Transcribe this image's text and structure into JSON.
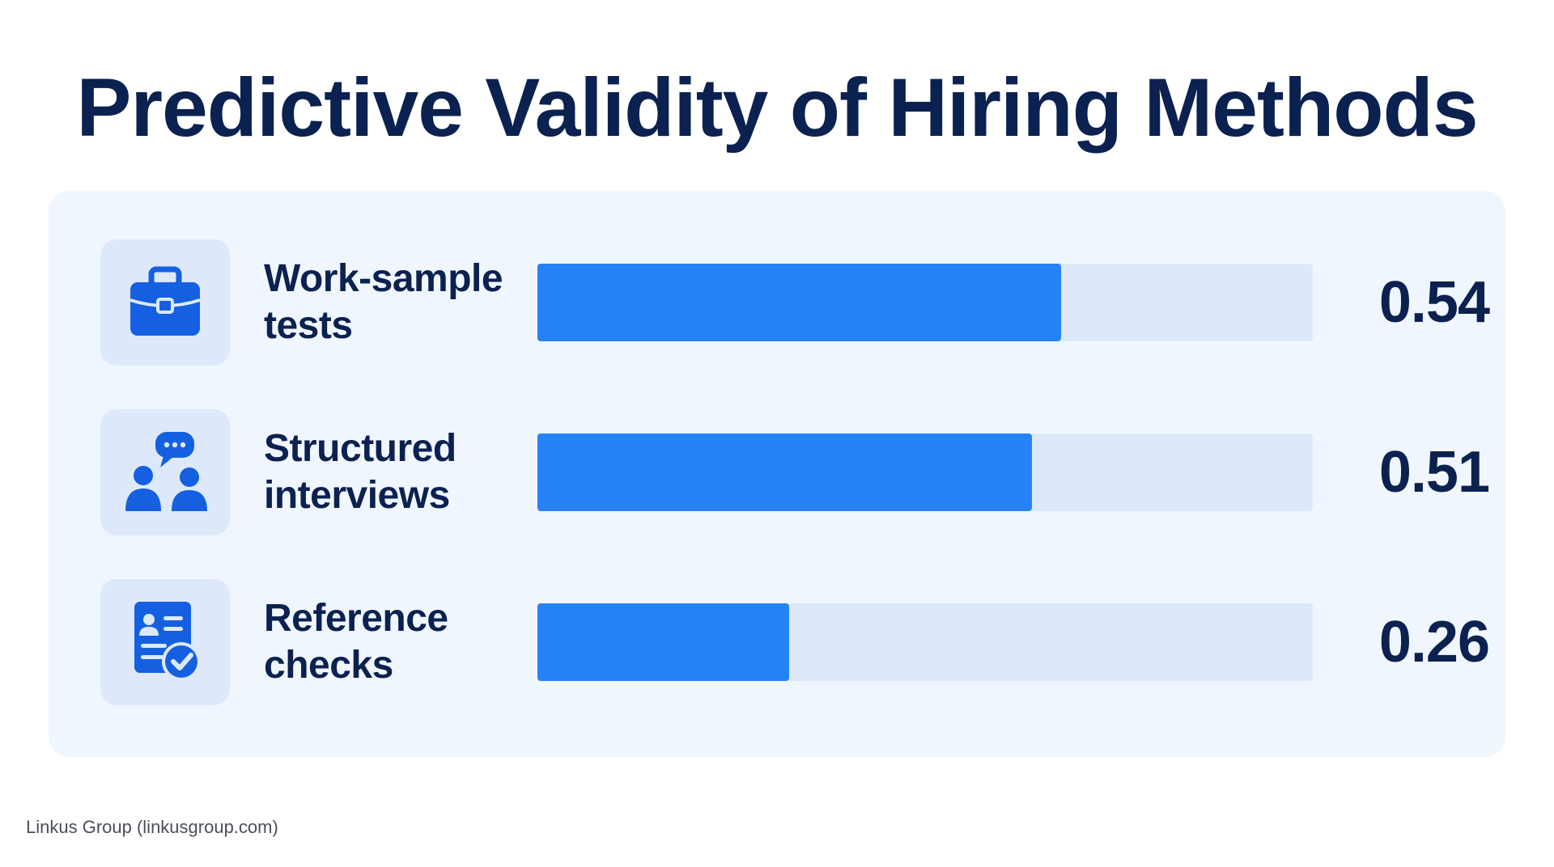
{
  "title": "Predictive Validity of Hiring Methods",
  "footer": "Linkus Group (linkusgroup.com)",
  "colors": {
    "bar_fill": "#2583f7",
    "bar_track": "#dde9fb",
    "panel": "#f0f6fe",
    "text": "#0b2150"
  },
  "rows": [
    {
      "label_line1": "Work-sample",
      "label_line2": "tests",
      "value_text": "0.54",
      "icon": "briefcase-icon"
    },
    {
      "label_line1": "Structured",
      "label_line2": "interviews",
      "value_text": "0.51",
      "icon": "interview-people-chat-icon"
    },
    {
      "label_line1": "Reference",
      "label_line2": "checks",
      "value_text": "0.26",
      "icon": "reference-document-check-icon"
    }
  ],
  "chart_data": {
    "type": "bar",
    "orientation": "horizontal",
    "title": "Predictive Validity of Hiring Methods",
    "categories": [
      "Work-sample tests",
      "Structured interviews",
      "Reference checks"
    ],
    "values": [
      0.54,
      0.51,
      0.26
    ],
    "xlim": [
      0,
      0.8
    ],
    "grid": false,
    "xlabel": "",
    "ylabel": ""
  }
}
